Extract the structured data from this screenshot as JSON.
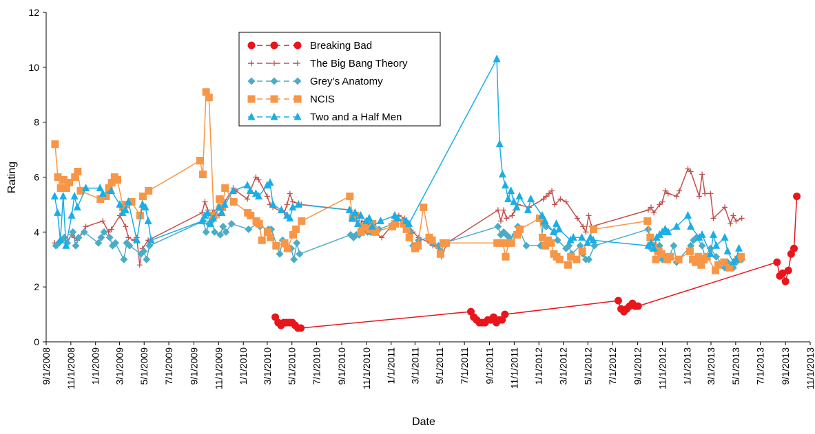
{
  "chart_data": {
    "type": "line",
    "xlabel": "Date",
    "ylabel": "Rating",
    "xlim": [
      "9/1/2008",
      "11/1/2013"
    ],
    "xticks": [
      "9/1/2008",
      "11/1/2008",
      "1/1/2009",
      "3/1/2009",
      "5/1/2009",
      "7/1/2009",
      "9/1/2009",
      "11/1/2009",
      "1/1/2010",
      "3/1/2010",
      "5/1/2010",
      "7/1/2010",
      "9/1/2010",
      "11/1/2010",
      "1/1/2011",
      "3/1/2011",
      "5/1/2011",
      "7/1/2011",
      "9/1/2011",
      "11/1/2011",
      "1/1/2012",
      "3/1/2012",
      "5/1/2012",
      "7/1/2012",
      "9/1/2012",
      "11/1/2012",
      "1/1/2013",
      "3/1/2013",
      "5/1/2013",
      "7/1/2013",
      "9/1/2013",
      "11/1/2013"
    ],
    "ylim": [
      0,
      12
    ],
    "yticks": [
      0,
      2,
      4,
      6,
      8,
      10,
      12
    ],
    "series": [
      {
        "name": "Breaking Bad",
        "color": "#e8161b",
        "marker": "circle",
        "x": [
          "3/21/2010",
          "3/28/2010",
          "4/4/2010",
          "4/11/2010",
          "4/18/2010",
          "4/25/2010",
          "5/2/2010",
          "5/9/2010",
          "5/16/2010",
          "5/23/2010",
          "7/17/2011",
          "7/24/2011",
          "7/31/2011",
          "8/7/2011",
          "8/14/2011",
          "8/21/2011",
          "8/28/2011",
          "9/4/2011",
          "9/11/2011",
          "9/18/2011",
          "9/25/2011",
          "10/2/2011",
          "10/9/2011",
          "7/15/2012",
          "7/22/2012",
          "7/29/2012",
          "8/5/2012",
          "8/12/2012",
          "8/19/2012",
          "8/26/2012",
          "9/2/2012",
          "8/11/2013",
          "8/18/2013",
          "8/25/2013",
          "9/1/2013",
          "9/8/2013",
          "9/15/2013",
          "9/22/2013",
          "9/29/2013"
        ],
        "values": [
          0.9,
          0.7,
          0.6,
          0.7,
          0.7,
          0.7,
          0.7,
          0.6,
          0.5,
          0.5,
          1.1,
          0.9,
          0.8,
          0.7,
          0.7,
          0.7,
          0.8,
          0.8,
          0.9,
          0.7,
          0.8,
          0.8,
          1.0,
          1.5,
          1.2,
          1.1,
          1.2,
          1.3,
          1.4,
          1.3,
          1.3,
          2.9,
          2.4,
          2.5,
          2.2,
          2.6,
          3.2,
          3.4,
          5.3
        ]
      },
      {
        "name": "The Big Bang Theory",
        "color": "#c0504d",
        "marker": "plus",
        "x": [
          "9/22/2008",
          "9/29/2008",
          "10/6/2008",
          "10/13/2008",
          "10/20/2008",
          "11/3/2008",
          "11/10/2008",
          "11/17/2008",
          "12/8/2008",
          "1/19/2009",
          "2/2/2009",
          "2/9/2009",
          "3/2/2009",
          "3/16/2009",
          "3/23/2009",
          "4/6/2009",
          "4/13/2009",
          "4/20/2009",
          "4/27/2009",
          "5/11/2009",
          "9/21/2009",
          "9/28/2009",
          "10/5/2009",
          "10/12/2009",
          "10/19/2009",
          "11/2/2009",
          "11/9/2009",
          "11/16/2009",
          "12/7/2009",
          "12/14/2009",
          "1/11/2010",
          "1/18/2010",
          "2/1/2010",
          "2/8/2010",
          "3/1/2010",
          "3/8/2010",
          "3/15/2010",
          "4/12/2010",
          "4/19/2010",
          "4/26/2010",
          "5/3/2010",
          "5/24/2010",
          "9/23/2010",
          "9/30/2010",
          "10/7/2010",
          "10/14/2010",
          "10/21/2010",
          "11/4/2010",
          "11/11/2010",
          "11/18/2010",
          "12/9/2010",
          "1/6/2011",
          "1/20/2011",
          "2/3/2011",
          "2/24/2011",
          "3/10/2011",
          "4/7/2011",
          "4/14/2011",
          "4/28/2011",
          "5/5/2011",
          "5/19/2011",
          "9/22/2011",
          "9/29/2011",
          "10/6/2011",
          "10/13/2011",
          "10/27/2011",
          "11/3/2011",
          "11/10/2011",
          "12/8/2011",
          "1/12/2012",
          "1/19/2012",
          "1/26/2012",
          "2/2/2012",
          "2/9/2012",
          "2/23/2012",
          "3/8/2012",
          "4/5/2012",
          "4/19/2012",
          "4/26/2012",
          "5/3/2012",
          "5/10/2012",
          "9/27/2012",
          "10/4/2012",
          "10/11/2012",
          "10/25/2012",
          "11/1/2012",
          "11/8/2012",
          "11/15/2012",
          "12/6/2012",
          "12/13/2012",
          "1/3/2013",
          "1/10/2013",
          "1/31/2013",
          "2/7/2013",
          "2/14/2013",
          "2/28/2013",
          "3/7/2013",
          "4/4/2013",
          "4/18/2013",
          "4/25/2013",
          "5/2/2013",
          "5/16/2013"
        ],
        "values": [
          3.6,
          3.5,
          3.7,
          3.8,
          3.6,
          3.9,
          3.8,
          3.7,
          4.2,
          4.4,
          4.0,
          4.1,
          4.6,
          4.2,
          3.8,
          3.7,
          3.8,
          2.8,
          3.4,
          3.7,
          4.7,
          5.1,
          4.8,
          4.6,
          4.8,
          4.6,
          4.9,
          5.1,
          5.6,
          5.5,
          5.2,
          5.5,
          6.0,
          5.9,
          5.3,
          5.0,
          4.9,
          4.7,
          5.0,
          5.4,
          5.1,
          5.0,
          4.8,
          4.5,
          4.4,
          4.2,
          4.4,
          4.3,
          4.2,
          4.0,
          3.8,
          4.3,
          4.6,
          4.5,
          4.0,
          3.8,
          3.6,
          3.5,
          3.4,
          3.1,
          3.6,
          4.8,
          4.4,
          4.8,
          4.5,
          4.6,
          4.8,
          5.0,
          4.9,
          5.2,
          5.3,
          5.4,
          5.5,
          5.0,
          5.2,
          5.1,
          4.5,
          4.2,
          4.0,
          4.6,
          4.2,
          4.8,
          4.9,
          4.7,
          5.0,
          5.1,
          5.5,
          5.4,
          5.3,
          5.5,
          6.3,
          6.2,
          5.3,
          6.1,
          5.4,
          5.4,
          4.5,
          4.9,
          4.3,
          4.6,
          4.4,
          4.5
        ]
      },
      {
        "name": "Grey’s Anatomy",
        "color": "#4bacc6",
        "marker": "diamond",
        "x": [
          "9/25/2008",
          "10/2/2008",
          "10/9/2008",
          "10/16/2008",
          "10/23/2008",
          "11/6/2008",
          "11/13/2008",
          "11/20/2008",
          "12/4/2008",
          "1/8/2009",
          "1/15/2009",
          "1/22/2009",
          "2/5/2009",
          "2/12/2009",
          "2/19/2009",
          "3/12/2009",
          "3/19/2009",
          "3/26/2009",
          "4/23/2009",
          "4/30/2009",
          "5/7/2009",
          "5/14/2009",
          "9/24/2009",
          "10/1/2009",
          "10/8/2009",
          "10/15/2009",
          "10/22/2009",
          "11/5/2009",
          "11/12/2009",
          "11/19/2009",
          "12/3/2009",
          "1/14/2010",
          "2/4/2010",
          "2/11/2010",
          "3/4/2010",
          "3/11/2010",
          "4/1/2010",
          "4/8/2010",
          "4/15/2010",
          "4/29/2010",
          "5/6/2010",
          "5/13/2010",
          "5/20/2010",
          "9/23/2010",
          "9/30/2010",
          "10/7/2010",
          "10/14/2010",
          "10/21/2010",
          "11/4/2010",
          "11/11/2010",
          "11/18/2010",
          "12/2/2010",
          "1/6/2011",
          "1/13/2011",
          "2/3/2011",
          "2/10/2011",
          "2/17/2011",
          "2/24/2011",
          "3/10/2011",
          "4/7/2011",
          "4/14/2011",
          "4/28/2011",
          "5/5/2011",
          "5/12/2011",
          "9/22/2011",
          "9/29/2011",
          "10/6/2011",
          "10/13/2011",
          "10/20/2011",
          "11/3/2011",
          "11/10/2011",
          "12/1/2011",
          "1/5/2012",
          "1/12/2012",
          "1/19/2012",
          "2/9/2012",
          "2/16/2012",
          "3/8/2012",
          "3/15/2012",
          "3/22/2012",
          "4/12/2012",
          "4/19/2012",
          "4/26/2012",
          "5/3/2012",
          "5/17/2012",
          "9/27/2012",
          "10/4/2012",
          "10/11/2012",
          "10/18/2012",
          "10/25/2012",
          "11/1/2012",
          "11/8/2012",
          "11/15/2012",
          "11/29/2012",
          "12/6/2012",
          "1/10/2013",
          "1/17/2013",
          "1/24/2013",
          "2/7/2013",
          "2/14/2013",
          "2/28/2013",
          "3/14/2013",
          "4/4/2013",
          "4/11/2013",
          "4/25/2013",
          "5/2/2013",
          "5/16/2013"
        ],
        "values": [
          3.5,
          3.6,
          3.7,
          3.8,
          3.6,
          4.0,
          3.5,
          3.8,
          4.0,
          3.6,
          3.8,
          4.0,
          3.8,
          3.5,
          3.6,
          3.0,
          3.6,
          3.5,
          3.2,
          3.3,
          3.0,
          3.5,
          4.4,
          4.0,
          4.3,
          4.4,
          4.0,
          3.9,
          4.2,
          4.0,
          4.3,
          4.1,
          4.3,
          4.2,
          4.1,
          4.1,
          3.2,
          3.7,
          3.5,
          3.4,
          3.0,
          3.6,
          3.2,
          3.9,
          3.8,
          3.9,
          3.9,
          4.1,
          4.0,
          4.0,
          4.2,
          4.1,
          4.3,
          4.5,
          4.4,
          4.1,
          4.0,
          3.5,
          3.7,
          3.8,
          3.6,
          3.5,
          3.3,
          3.6,
          4.2,
          3.9,
          4.0,
          3.9,
          3.8,
          3.9,
          4.2,
          3.5,
          3.5,
          4.3,
          4.2,
          4.0,
          3.7,
          3.4,
          3.5,
          3.2,
          3.5,
          3.2,
          3.0,
          3.0,
          3.5,
          4.1,
          3.4,
          3.5,
          3.3,
          3.5,
          3.0,
          3.1,
          3.0,
          3.5,
          2.9,
          3.5,
          3.7,
          3.8,
          3.5,
          3.1,
          3.4,
          3.1,
          2.7,
          2.9,
          2.7,
          2.9,
          3.0
        ]
      },
      {
        "name": "NCIS",
        "color": "#f79646",
        "marker": "square",
        "x": [
          "9/23/2008",
          "9/30/2008",
          "10/7/2008",
          "10/14/2008",
          "10/21/2008",
          "10/28/2008",
          "11/11/2008",
          "11/18/2008",
          "11/25/2008",
          "1/13/2009",
          "1/27/2009",
          "2/3/2009",
          "2/10/2009",
          "2/17/2009",
          "2/24/2009",
          "3/10/2009",
          "3/17/2009",
          "3/31/2009",
          "4/21/2009",
          "4/28/2009",
          "5/12/2009",
          "9/16/2009",
          "9/23/2009",
          "10/1/2009",
          "10/8/2009",
          "10/20/2009",
          "11/3/2009",
          "11/10/2009",
          "11/17/2009",
          "12/8/2009",
          "1/12/2010",
          "1/19/2010",
          "2/2/2010",
          "2/9/2010",
          "2/16/2010",
          "3/2/2010",
          "3/9/2010",
          "3/23/2010",
          "4/13/2010",
          "4/20/2010",
          "5/4/2010",
          "5/11/2010",
          "5/25/2010",
          "9/21/2010",
          "9/28/2010",
          "10/5/2010",
          "10/19/2010",
          "10/26/2010",
          "11/9/2010",
          "11/16/2010",
          "11/23/2010",
          "1/4/2011",
          "1/11/2011",
          "2/1/2011",
          "2/8/2011",
          "2/15/2011",
          "3/1/2011",
          "3/8/2011",
          "3/22/2011",
          "4/5/2011",
          "4/12/2011",
          "5/3/2011",
          "5/10/2011",
          "5/17/2011",
          "9/20/2011",
          "9/27/2011",
          "10/4/2011",
          "10/11/2011",
          "10/18/2011",
          "10/25/2011",
          "11/8/2011",
          "11/15/2011",
          "1/3/2012",
          "1/10/2012",
          "1/17/2012",
          "1/24/2012",
          "1/31/2012",
          "2/7/2012",
          "2/14/2012",
          "2/21/2012",
          "3/13/2012",
          "3/20/2012",
          "4/3/2012",
          "4/17/2012",
          "5/15/2012",
          "9/25/2012",
          "10/2/2012",
          "10/9/2012",
          "10/16/2012",
          "10/23/2012",
          "10/30/2012",
          "11/13/2012",
          "11/20/2012",
          "12/11/2012",
          "1/8/2013",
          "1/15/2013",
          "1/22/2013",
          "1/29/2013",
          "2/5/2013",
          "2/12/2013",
          "2/19/2013",
          "3/12/2013",
          "3/19/2013",
          "4/2/2013",
          "4/16/2013",
          "5/7/2013",
          "5/14/2013"
        ],
        "values": [
          7.2,
          6.0,
          5.6,
          5.9,
          5.6,
          5.8,
          6.0,
          6.2,
          5.5,
          5.2,
          5.3,
          5.6,
          5.8,
          6.0,
          5.9,
          4.9,
          5.0,
          5.1,
          4.6,
          5.3,
          5.5,
          6.6,
          6.1,
          9.1,
          8.9,
          4.6,
          5.2,
          4.9,
          5.6,
          5.1,
          4.7,
          4.6,
          4.4,
          4.3,
          3.7,
          4.0,
          3.8,
          3.5,
          3.6,
          3.4,
          3.9,
          4.1,
          4.4,
          5.3,
          4.5,
          4.6,
          4.0,
          4.2,
          4.1,
          4.3,
          4.0,
          4.2,
          4.3,
          4.3,
          4.1,
          3.8,
          3.4,
          3.5,
          4.9,
          3.8,
          3.7,
          3.2,
          3.6,
          3.6,
          3.6,
          3.6,
          3.6,
          3.1,
          3.6,
          3.6,
          3.9,
          4.1,
          4.5,
          3.8,
          3.5,
          3.7,
          3.6,
          3.2,
          3.1,
          3.0,
          2.8,
          3.1,
          3.0,
          3.3,
          4.1,
          4.4,
          3.8,
          3.5,
          3.0,
          3.3,
          3.2,
          3.0,
          3.1,
          3.0,
          3.3,
          3.0,
          2.9,
          3.1,
          2.8,
          3.0,
          3.1,
          2.6,
          2.8,
          2.9,
          2.7,
          3.0,
          3.1
        ]
      },
      {
        "name": "Two and a Half Men",
        "color": "#1aaee6",
        "marker": "triangle",
        "x": [
          "9/22/2008",
          "9/29/2008",
          "10/6/2008",
          "10/13/2008",
          "10/20/2008",
          "11/3/2008",
          "11/10/2008",
          "11/17/2008",
          "12/8/2008",
          "1/12/2009",
          "1/19/2009",
          "2/9/2009",
          "3/2/2009",
          "3/9/2009",
          "3/16/2009",
          "3/23/2009",
          "4/13/2009",
          "4/27/2009",
          "5/4/2009",
          "5/11/2009",
          "5/18/2009",
          "9/21/2009",
          "9/28/2009",
          "10/5/2009",
          "10/12/2009",
          "10/19/2009",
          "11/2/2009",
          "11/9/2009",
          "11/16/2009",
          "12/7/2009",
          "1/11/2010",
          "1/18/2010",
          "2/1/2010",
          "2/8/2010",
          "3/1/2010",
          "3/8/2010",
          "3/15/2010",
          "4/5/2010",
          "4/19/2010",
          "4/26/2010",
          "5/3/2010",
          "5/17/2010",
          "9/20/2010",
          "9/27/2010",
          "10/4/2010",
          "10/11/2010",
          "10/18/2010",
          "11/1/2010",
          "11/8/2010",
          "11/15/2010",
          "12/6/2010",
          "1/10/2011",
          "1/17/2011",
          "2/7/2011",
          "2/14/2011",
          "9/19/2011",
          "9/26/2011",
          "10/3/2011",
          "10/10/2011",
          "10/17/2011",
          "10/24/2011",
          "10/31/2011",
          "11/7/2011",
          "11/14/2011",
          "12/5/2011",
          "12/12/2011",
          "1/9/2012",
          "1/16/2012",
          "2/6/2012",
          "2/13/2012",
          "2/20/2012",
          "3/19/2012",
          "3/26/2012",
          "4/16/2012",
          "4/30/2012",
          "5/7/2012",
          "5/14/2012",
          "9/27/2012",
          "10/4/2012",
          "10/11/2012",
          "10/18/2012",
          "10/25/2012",
          "11/1/2012",
          "11/8/2012",
          "11/15/2012",
          "12/6/2012",
          "1/3/2013",
          "1/10/2013",
          "1/31/2013",
          "2/7/2013",
          "2/28/2013",
          "3/7/2013",
          "3/14/2013",
          "4/4/2013",
          "4/11/2013",
          "4/25/2013",
          "5/2/2013",
          "5/9/2013"
        ],
        "values": [
          5.3,
          4.7,
          3.7,
          5.3,
          3.5,
          4.6,
          5.3,
          4.9,
          5.6,
          5.6,
          5.4,
          5.5,
          5.0,
          4.7,
          4.8,
          5.1,
          3.7,
          5.0,
          4.9,
          4.4,
          3.7,
          4.4,
          4.6,
          4.7,
          4.3,
          4.5,
          4.9,
          4.7,
          5.0,
          5.5,
          5.7,
          5.5,
          5.4,
          5.3,
          5.7,
          5.8,
          5.0,
          4.8,
          4.6,
          4.5,
          4.9,
          5.0,
          4.8,
          4.5,
          4.7,
          4.3,
          4.6,
          4.4,
          4.5,
          4.2,
          4.4,
          4.6,
          4.5,
          4.4,
          4.3,
          10.3,
          7.2,
          6.1,
          5.7,
          5.2,
          5.5,
          5.1,
          4.9,
          5.3,
          4.8,
          5.2,
          4.6,
          4.4,
          4.0,
          4.3,
          4.1,
          3.7,
          3.8,
          3.8,
          3.6,
          3.8,
          3.7,
          3.5,
          3.6,
          3.4,
          3.8,
          3.9,
          4.0,
          4.1,
          4.0,
          4.2,
          4.6,
          4.2,
          3.8,
          3.9,
          3.2,
          3.9,
          3.5,
          3.8,
          3.3,
          2.9,
          3.0,
          3.4
        ]
      }
    ]
  }
}
